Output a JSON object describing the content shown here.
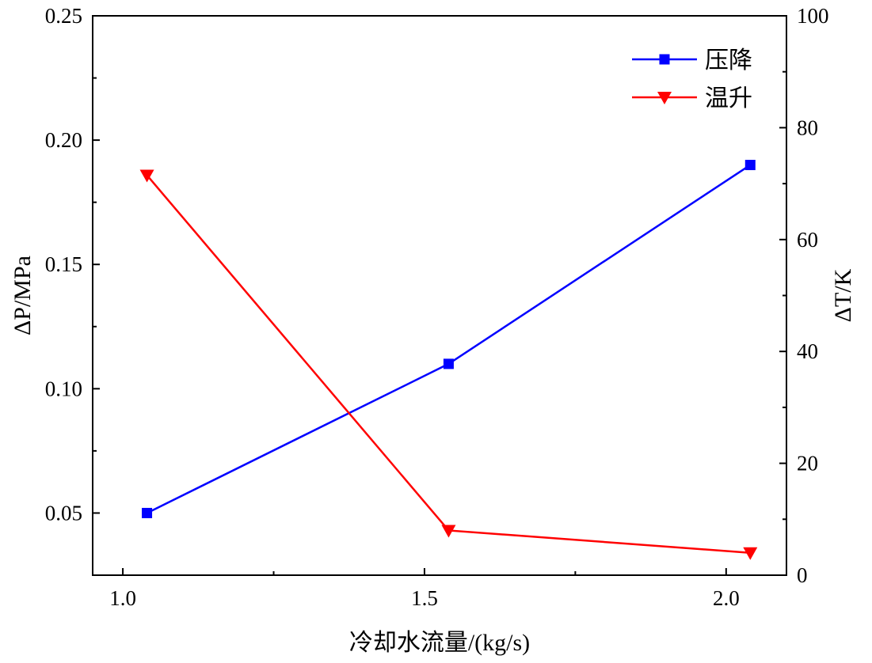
{
  "chart_data": {
    "type": "line",
    "x_axis": {
      "label": "冷却水流量/(kg/s)",
      "range": [
        0.95,
        2.1
      ],
      "ticks": [
        1.0,
        1.5,
        2.0
      ],
      "tick_labels": [
        "1.0",
        "1.5",
        "2.0"
      ],
      "minor_ticks": [
        1.25,
        1.75
      ]
    },
    "y_left_axis": {
      "label": "ΔP/MPa",
      "range": [
        0.025,
        0.25
      ],
      "ticks": [
        0.05,
        0.1,
        0.15,
        0.2,
        0.25
      ],
      "tick_labels": [
        "0.05",
        "0.10",
        "0.15",
        "0.20",
        "0.25"
      ]
    },
    "y_right_axis": {
      "label": "ΔT/K",
      "range": [
        0,
        100
      ],
      "ticks": [
        0,
        20,
        40,
        60,
        80,
        100
      ],
      "tick_labels": [
        "0",
        "20",
        "40",
        "60",
        "80",
        "100"
      ]
    },
    "series": [
      {
        "name": "压降",
        "axis": "left",
        "color": "#0000ff",
        "marker": "square",
        "x": [
          1.04,
          1.54,
          2.04
        ],
        "y": [
          0.05,
          0.11,
          0.19
        ]
      },
      {
        "name": "温升",
        "axis": "right",
        "color": "#ff0000",
        "marker": "triangle-down",
        "x": [
          1.04,
          1.54,
          2.04
        ],
        "y": [
          71.5,
          8,
          4
        ]
      }
    ],
    "legend_position": "top-right",
    "grid": false
  }
}
